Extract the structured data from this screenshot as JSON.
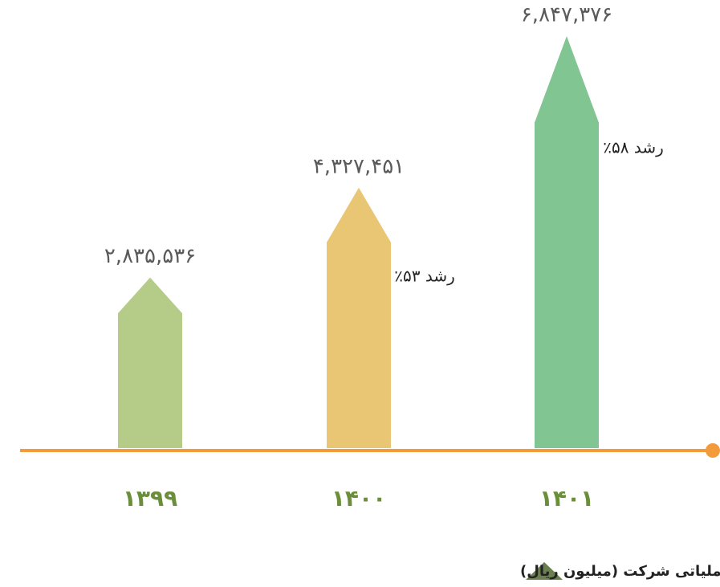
{
  "chart_data": {
    "type": "bar",
    "title": "نمودار رشد درآمد عملیاتی شرکت (میلیون ریال)",
    "categories": [
      "۱۳۹۹",
      "۱۴۰۰",
      "۱۴۰۱"
    ],
    "values": [
      2835536,
      4327451,
      6847376
    ],
    "value_labels": [
      "۲,۸۳۵,۵۳۶",
      "۴,۳۲۷,۴۵۱",
      "۶,۸۴۷,۳۷۶"
    ],
    "colors": [
      "#b5cc88",
      "#e8c673",
      "#80c592"
    ],
    "annotations": [
      "رشد ۵۳٪",
      "رشد ۵۸٪"
    ]
  }
}
